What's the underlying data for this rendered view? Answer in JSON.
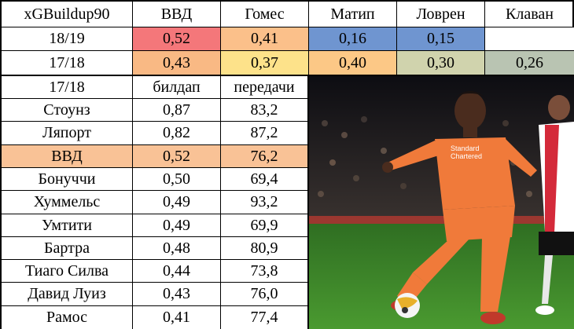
{
  "header": {
    "corner": "xGBuildup90",
    "players": [
      "ВВД",
      "Гомес",
      "Матип",
      "Ловрен",
      "Клаван"
    ]
  },
  "season_rows": [
    {
      "season": "18/19",
      "values": [
        "0,52",
        "0,41",
        "0,16",
        "0,15",
        ""
      ],
      "colors": [
        "#f4777a",
        "#fbc08a",
        "#6f95d0",
        "#6f95d0",
        "#ffffff"
      ]
    },
    {
      "season": "17/18",
      "values": [
        "0,43",
        "0,37",
        "0,40",
        "0,30",
        "0,26"
      ],
      "colors": [
        "#f9b984",
        "#fde28a",
        "#fcc886",
        "#d0d3ad",
        "#b9c4b2"
      ]
    }
  ],
  "table2": {
    "headers": [
      "17/18",
      "билдап",
      "передачи"
    ],
    "rows": [
      {
        "name": "Стоунз",
        "buildup": "0,87",
        "passes": "83,2"
      },
      {
        "name": "Ляпорт",
        "buildup": "0,82",
        "passes": "87,2"
      },
      {
        "name": "ВВД",
        "buildup": "0,52",
        "passes": "76,2",
        "highlight": "#f9c296"
      },
      {
        "name": "Бонуччи",
        "buildup": "0,50",
        "passes": "69,4"
      },
      {
        "name": "Хуммельс",
        "buildup": "0,49",
        "passes": "93,2"
      },
      {
        "name": "Умтити",
        "buildup": "0,49",
        "passes": "69,9"
      },
      {
        "name": "Бартра",
        "buildup": "0,48",
        "passes": "80,9"
      },
      {
        "name": "Тиаго Силва",
        "buildup": "0,44",
        "passes": "73,8"
      },
      {
        "name": "Давид Луиз",
        "buildup": "0,43",
        "passes": "76,0"
      },
      {
        "name": "Рамос",
        "buildup": "0,41",
        "passes": "77,4"
      }
    ]
  },
  "photo": {
    "kit_text": "Standard Chartered",
    "colors": {
      "kit": "#f07a3a",
      "pitch": "#3f8a2c",
      "stands": "#2a2a2a",
      "opponent": "#d42a3a"
    }
  }
}
